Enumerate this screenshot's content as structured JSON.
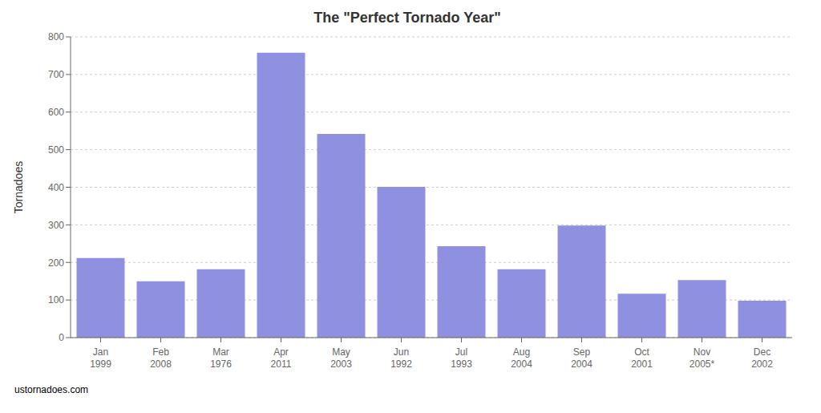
{
  "chart_data": {
    "type": "bar",
    "title": "The \"Perfect Tornado Year\"",
    "y_label": "Tornadoes",
    "annotations": [
      "ustornadoes.com"
    ],
    "categories": [
      "Jan\n1999",
      "Feb\n2008",
      "Mar\n1976",
      "Apr\n2011",
      "May\n2003",
      "Jun\n1992",
      "Jul\n1993",
      "Aug\n2004",
      "Sep\n2004",
      "Oct\n2001",
      "Nov\n2005*",
      "Dec\n2002"
    ],
    "values": [
      212,
      150,
      182,
      758,
      542,
      401,
      243,
      182,
      298,
      117,
      153,
      98
    ],
    "color": "#9090e0",
    "ylim": [
      0,
      800
    ],
    "yticks": [
      0,
      100,
      200,
      300,
      400,
      500,
      600,
      700,
      800
    ],
    "grid": true
  }
}
